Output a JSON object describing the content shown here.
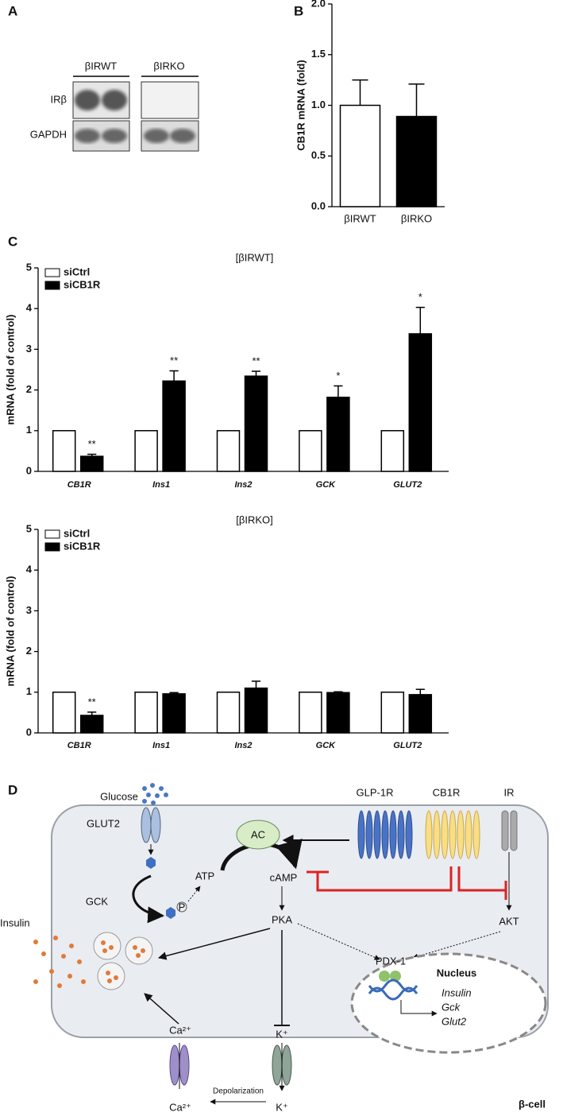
{
  "panel_labels": [
    "A",
    "B",
    "C",
    "D"
  ],
  "blot": {
    "groups": [
      "βIRWT",
      "βIRKO"
    ],
    "rows": [
      "IRβ",
      "GAPDH"
    ]
  },
  "chart_data": [
    {
      "type": "bar",
      "ylabel": "CB1R mRNA (fold)",
      "categories": [
        "βIRWT",
        "βIRKO"
      ],
      "values": [
        1.0,
        0.89
      ],
      "errors": [
        0.25,
        0.32
      ],
      "colors": [
        "#ffffff",
        "#000000"
      ],
      "ylim": [
        0,
        2
      ],
      "yticks": [
        {
          "value": 0,
          "label": "0.0"
        },
        {
          "value": 0.5,
          "label": "0.5"
        },
        {
          "value": 1,
          "label": "1.0"
        },
        {
          "value": 1.5,
          "label": "1.5"
        },
        {
          "value": 2,
          "label": "2.0"
        }
      ]
    },
    {
      "type": "bar",
      "title": "[βIRWT]",
      "ylabel": "mRNA (fold of control)",
      "categories": [
        "CB1R",
        "Ins1",
        "Ins2",
        "GCK",
        "GLUT2"
      ],
      "series": [
        {
          "name": "siCtrl",
          "color": "#ffffff",
          "values": [
            1,
            1,
            1,
            1,
            1
          ]
        },
        {
          "name": "siCB1R",
          "color": "#000000",
          "values": [
            0.37,
            2.22,
            2.34,
            1.82,
            3.38
          ],
          "errors": [
            0.05,
            0.25,
            0.12,
            0.28,
            0.65
          ],
          "annotations": [
            "**",
            "**",
            "**",
            "*",
            "*"
          ]
        }
      ],
      "ylim": [
        0,
        5
      ],
      "yticks": [
        0,
        1,
        2,
        3,
        4,
        5
      ],
      "legend": "upper left"
    },
    {
      "type": "bar",
      "title": "[βIRKO]",
      "ylabel": "mRNA (fold of control)",
      "categories": [
        "CB1R",
        "Ins1",
        "Ins2",
        "GCK",
        "GLUT2"
      ],
      "series": [
        {
          "name": "siCtrl",
          "color": "#ffffff",
          "values": [
            1,
            1,
            1,
            1,
            1
          ]
        },
        {
          "name": "siCB1R",
          "color": "#000000",
          "values": [
            0.43,
            0.96,
            1.1,
            0.99,
            0.94
          ],
          "errors": [
            0.08,
            0.03,
            0.17,
            0.02,
            0.13
          ],
          "annotations": [
            "**",
            null,
            null,
            null,
            null
          ]
        }
      ],
      "ylim": [
        0,
        5
      ],
      "yticks": [
        0,
        1,
        2,
        3,
        4,
        5
      ],
      "legend": "upper left"
    }
  ],
  "diagram": {
    "glucose": "Glucose",
    "glut2": "GLUT2",
    "gck": "GCK",
    "p": "P",
    "atp": "ATP",
    "ac": "AC",
    "camp": "cAMP",
    "pka": "PKA",
    "glp1r": "GLP-1R",
    "cb1r": "CB1R",
    "ir": "IR",
    "akt": "AKT",
    "pdx1": "PDX-1",
    "nucleus": "Nucleus",
    "genes": [
      "Insulin",
      "Gck",
      "Glut2"
    ],
    "insulin": "Insulin",
    "ca_in": "Ca²⁺",
    "ca_out": "Ca²⁺",
    "k_in": "K⁺",
    "k_out": "K⁺",
    "depolarization": "Depolarization",
    "cell": "β-cell"
  }
}
